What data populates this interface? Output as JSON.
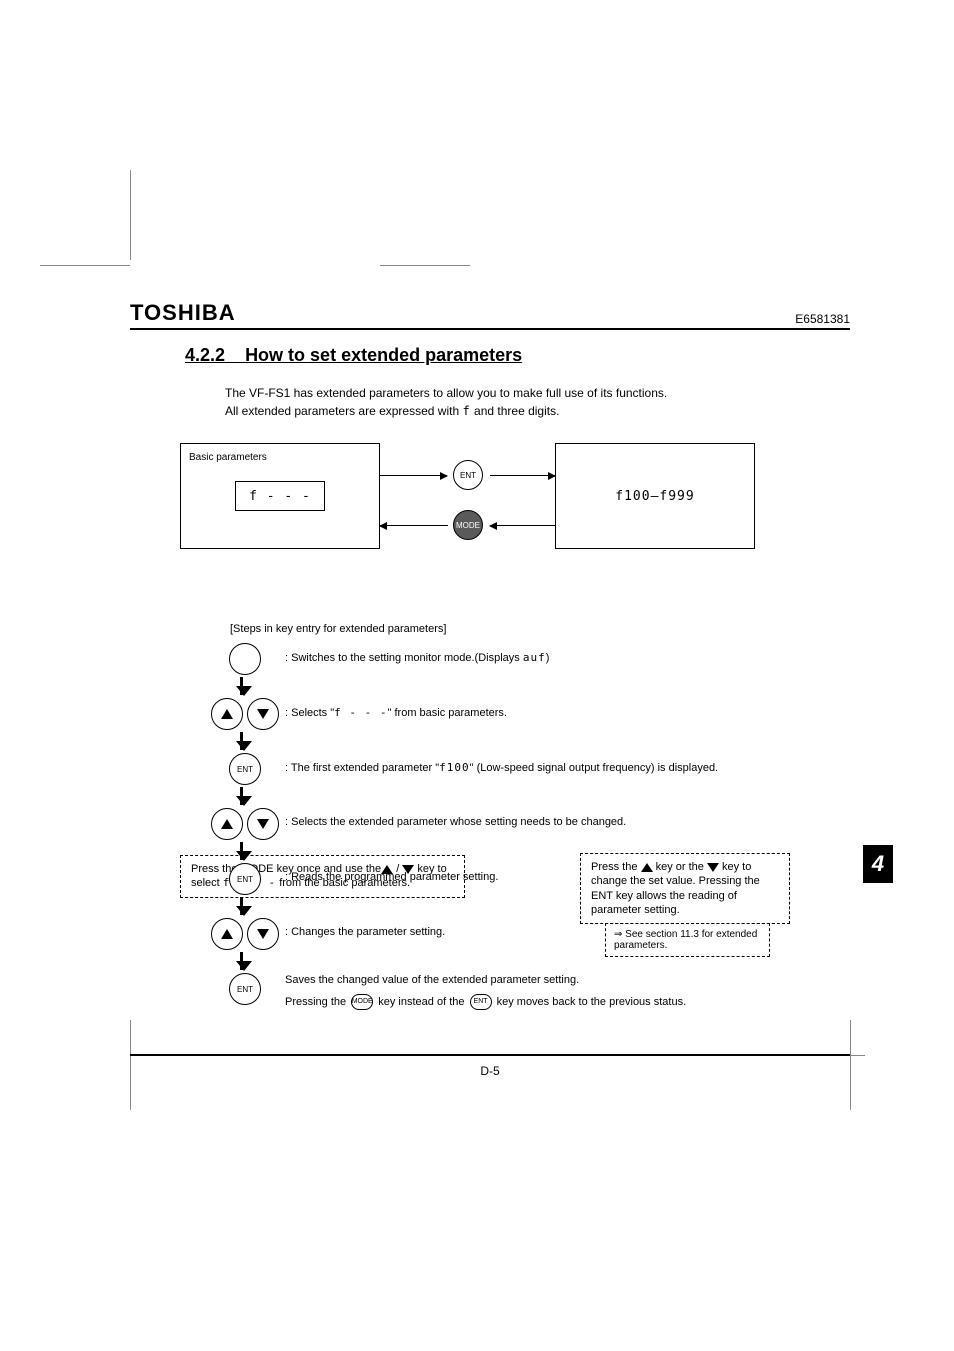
{
  "brand": "TOSHIBA",
  "doc_number": "E6581381",
  "section_number": "4.2.2",
  "section_title": "How to set extended parameters",
  "intro_line1_pre": "The VF-FS1 has extended parameters to allow you to make full use of its functions.",
  "intro_line2_pre": "All extended parameters are expressed with ",
  "intro_line2_code": "f",
  "intro_line2_post": " and three digits.",
  "diagram": {
    "basic_label": "Basic parameters",
    "basic_code": "f - - -",
    "ent": "ENT",
    "mode": "MODE",
    "ext_range": "f100–f999"
  },
  "note_left_pre": "Press the MODE key once and use the",
  "note_left_mid": " / ",
  "note_left_post": " key to select ",
  "note_left_code": "f - - -",
  "note_left_end": " from the basic parameters.",
  "note_right_pre": "Press the ",
  "note_right_mid1": " key or the ",
  "note_right_mid2": " key to change the set value. Pressing the ENT key allows the reading of parameter setting.",
  "chapter_tab": "4",
  "steps_title": "[Steps in key entry for extended parameters]",
  "steps_note_pre": "⇒ See section 11.3 for extended parameters.",
  "steps": [
    {
      "type": "mode",
      "pre": ": Switches to the setting monitor mode.(Displays ",
      "code": "auf",
      "post": ")"
    },
    {
      "type": "updown",
      "pre": ": Selects \"",
      "code": "f - - -",
      "post": "\" from basic parameters."
    },
    {
      "type": "ent",
      "pre": ": The first extended parameter \"",
      "code": "f100",
      "post": "\" (Low-speed signal output frequency) is displayed."
    },
    {
      "type": "updown",
      "pre": ": Selects the extended parameter whose setting needs to be changed.",
      "code": "",
      "post": ""
    },
    {
      "type": "ent",
      "pre": ": Reads the programmed parameter setting.",
      "code": "",
      "post": ""
    },
    {
      "type": "updown",
      "pre": ": Changes the parameter setting.",
      "code": "",
      "post": ""
    },
    {
      "type": "ent",
      "pre": "Saves the changed value of the extended parameter setting.",
      "code": "",
      "post": "",
      "line2_pre": "Pressing the ",
      "line2_mid": " key instead of the ",
      "line2_post": " key moves back to the previous status.",
      "final": true
    }
  ],
  "page_num": "D-5"
}
